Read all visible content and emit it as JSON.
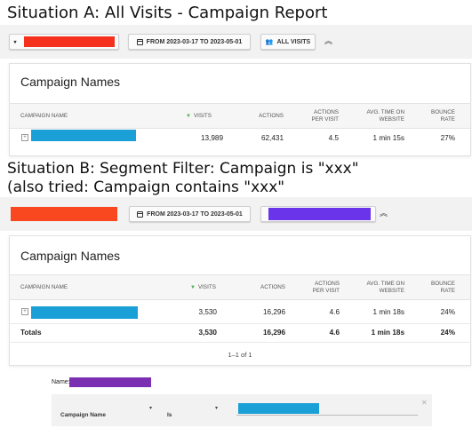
{
  "situation_a": {
    "heading": "Situation A: All Visits - Campaign Report",
    "date_range": "FROM 2023-03-17 TO 2023-05-01",
    "segment_button": "ALL VISITS",
    "report_title": "Campaign Names",
    "columns": [
      "CAMPAIGN NAME",
      "VISITS",
      "ACTIONS",
      "ACTIONS PER VISIT",
      "AVG. TIME ON WEBSITE",
      "BOUNCE RATE"
    ],
    "row": {
      "visits": "13,989",
      "actions": "62,431",
      "actions_per_visit": "4.5",
      "avg_time": "1 min 15s",
      "bounce_rate": "27%"
    }
  },
  "situation_b": {
    "heading_line1": "Situation B: Segment Filter: Campaign is \"xxx\"",
    "heading_line2": "(also tried: Campaign contains \"xxx\"",
    "date_range": "FROM 2023-03-17 TO 2023-05-01",
    "report_title": "Campaign Names",
    "columns": [
      "CAMPAIGN NAME",
      "VISITS",
      "ACTIONS",
      "ACTIONS PER VISIT",
      "AVG. TIME ON WEBSITE",
      "BOUNCE RATE"
    ],
    "row": {
      "visits": "3,530",
      "actions": "16,296",
      "actions_per_visit": "4.6",
      "avg_time": "1 min 18s",
      "bounce_rate": "24%"
    },
    "totals": {
      "label": "Totals",
      "visits": "3,530",
      "actions": "16,296",
      "actions_per_visit": "4.6",
      "avg_time": "1 min 18s",
      "bounce_rate": "24%"
    },
    "pagination": "1–1 of 1"
  },
  "segment_editor": {
    "name_label": "Name:",
    "dimension": "Campaign Name",
    "operator": "Is"
  },
  "colors": {
    "redact_red": "#f5301d",
    "redact_orange": "#f9471f",
    "redact_blue": "#1a9fd6",
    "redact_purple": "#6a34ea",
    "redact_violet": "#7b2fb3",
    "sort_green": "#4caf50"
  },
  "icons": [
    "calendar-icon",
    "people-icon",
    "chevron-double-up-icon",
    "expand-icon",
    "dropdown-caret-icon",
    "close-icon"
  ]
}
